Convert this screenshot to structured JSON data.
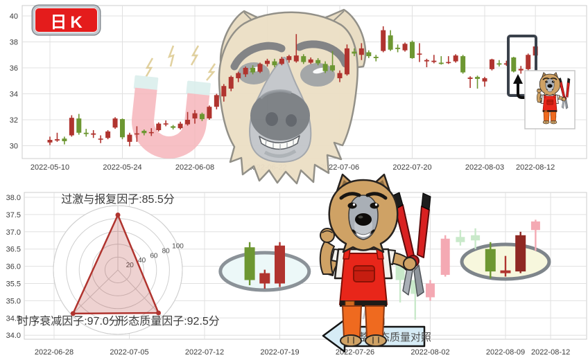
{
  "badge": {
    "label": "日K"
  },
  "banner": {
    "label": "完整形态质量对照"
  },
  "decorations": {
    "magnet": "magnet-icon",
    "dog_head": "dog-head-illustration",
    "mascot": "dog-mechanic-with-pliers-illustration",
    "callout": "highlight-box-with-arrow-and-mascot-card"
  },
  "chart_data": [
    {
      "type": "candlestick",
      "title": "日K",
      "up_color": "#b0342f",
      "down_color": "#6d9732",
      "ylim": [
        29.5,
        40.6
      ],
      "grid": true,
      "y_ticks": [
        "30",
        "32",
        "34",
        "36",
        "38",
        "40"
      ],
      "x_ticks": [
        {
          "idx": 0,
          "label": "2022-05-10"
        },
        {
          "idx": 10,
          "label": "2022-05-24"
        },
        {
          "idx": 20,
          "label": "2022-06-08"
        },
        {
          "idx": 30,
          "label": "2022-06-22"
        },
        {
          "idx": 40,
          "label": "2022-07-06"
        },
        {
          "idx": 50,
          "label": "2022-07-20"
        },
        {
          "idx": 60,
          "label": "2022-08-03"
        },
        {
          "idx": 67,
          "label": "2022-08-12"
        }
      ],
      "dates": [
        "2022-05-10",
        "2022-05-11",
        "2022-05-12",
        "2022-05-13",
        "2022-05-16",
        "2022-05-17",
        "2022-05-18",
        "2022-05-19",
        "2022-05-20",
        "2022-05-23",
        "2022-05-24",
        "2022-05-25",
        "2022-05-26",
        "2022-05-27",
        "2022-05-30",
        "2022-05-31",
        "2022-06-01",
        "2022-06-02",
        "2022-06-06",
        "2022-06-07",
        "2022-06-08",
        "2022-06-09",
        "2022-06-10",
        "2022-06-13",
        "2022-06-14",
        "2022-06-15",
        "2022-06-16",
        "2022-06-17",
        "2022-06-20",
        "2022-06-21",
        "2022-06-22",
        "2022-06-23",
        "2022-06-24",
        "2022-06-27",
        "2022-06-28",
        "2022-06-29",
        "2022-06-30",
        "2022-07-01",
        "2022-07-04",
        "2022-07-05",
        "2022-07-06",
        "2022-07-07",
        "2022-07-08",
        "2022-07-11",
        "2022-07-12",
        "2022-07-13",
        "2022-07-14",
        "2022-07-15",
        "2022-07-18",
        "2022-07-19",
        "2022-07-20",
        "2022-07-21",
        "2022-07-22",
        "2022-07-25",
        "2022-07-26",
        "2022-07-27",
        "2022-07-28",
        "2022-07-29",
        "2022-08-01",
        "2022-08-02",
        "2022-08-03",
        "2022-08-04",
        "2022-08-05",
        "2022-08-08",
        "2022-08-09",
        "2022-08-10",
        "2022-08-11",
        "2022-08-12"
      ],
      "ohlc": [
        [
          30.25,
          30.7,
          30.05,
          30.45
        ],
        [
          30.4,
          31.0,
          30.3,
          30.5
        ],
        [
          30.55,
          30.7,
          30.1,
          30.35
        ],
        [
          30.8,
          32.35,
          30.7,
          32.15
        ],
        [
          32.1,
          32.45,
          30.85,
          31.0
        ],
        [
          31.0,
          31.3,
          30.7,
          30.9
        ],
        [
          30.85,
          31.2,
          30.6,
          30.95
        ],
        [
          30.5,
          30.8,
          30.2,
          30.55
        ],
        [
          30.6,
          31.2,
          30.5,
          31.1
        ],
        [
          31.4,
          32.2,
          31.3,
          32.1
        ],
        [
          32.05,
          32.1,
          30.5,
          30.65
        ],
        [
          30.3,
          31.0,
          29.95,
          30.85
        ],
        [
          30.9,
          31.5,
          30.3,
          30.95
        ],
        [
          31.15,
          31.25,
          30.8,
          30.97
        ],
        [
          31.0,
          31.35,
          30.75,
          31.05
        ],
        [
          31.2,
          31.8,
          31.1,
          31.7
        ],
        [
          31.7,
          31.95,
          31.5,
          31.72
        ],
        [
          31.5,
          31.6,
          31.25,
          31.38
        ],
        [
          31.35,
          31.85,
          31.25,
          31.7
        ],
        [
          31.65,
          32.6,
          31.55,
          32.0
        ],
        [
          32.1,
          32.75,
          31.7,
          32.5
        ],
        [
          32.45,
          32.55,
          31.9,
          32.05
        ],
        [
          32.1,
          33.1,
          32.0,
          33.0
        ],
        [
          33.0,
          34.0,
          32.8,
          33.9
        ],
        [
          33.8,
          34.75,
          33.4,
          34.6
        ],
        [
          34.4,
          35.4,
          34.2,
          35.3
        ],
        [
          35.2,
          35.7,
          34.9,
          35.6
        ],
        [
          35.5,
          36.1,
          35.3,
          36.0
        ],
        [
          36.0,
          36.2,
          35.5,
          35.65
        ],
        [
          35.7,
          36.4,
          35.6,
          36.3
        ],
        [
          36.3,
          36.7,
          36.1,
          36.55
        ],
        [
          36.5,
          36.7,
          36.05,
          36.2
        ],
        [
          36.3,
          36.85,
          36.2,
          36.7
        ],
        [
          36.6,
          37.0,
          36.4,
          36.9
        ],
        [
          36.5,
          38.6,
          36.4,
          36.95
        ],
        [
          36.9,
          37.05,
          36.3,
          36.45
        ],
        [
          36.4,
          36.8,
          36.3,
          36.65
        ],
        [
          36.6,
          36.75,
          36.2,
          36.35
        ],
        [
          36.3,
          36.5,
          35.6,
          35.75
        ],
        [
          36.2,
          37.3,
          35.7,
          35.8
        ],
        [
          35.2,
          35.8,
          34.9,
          35.6
        ],
        [
          35.5,
          37.8,
          35.4,
          37.5
        ],
        [
          37.25,
          37.5,
          36.9,
          37.1
        ],
        [
          37.0,
          37.9,
          36.6,
          37.5
        ],
        [
          37.2,
          37.35,
          36.75,
          36.9
        ],
        [
          36.85,
          37.0,
          36.5,
          36.75
        ],
        [
          37.3,
          39.2,
          37.2,
          38.9
        ],
        [
          38.5,
          38.9,
          37.3,
          37.4
        ],
        [
          37.55,
          37.8,
          37.2,
          37.45
        ],
        [
          37.35,
          37.95,
          37.25,
          37.85
        ],
        [
          38.0,
          38.1,
          36.7,
          36.75
        ],
        [
          37.05,
          37.9,
          36.45,
          37.1
        ],
        [
          36.5,
          36.7,
          36.05,
          36.6
        ],
        [
          36.45,
          37.0,
          36.35,
          36.55
        ],
        [
          36.4,
          36.9,
          36.25,
          36.3
        ],
        [
          36.38,
          36.9,
          36.3,
          36.45
        ],
        [
          36.5,
          37.05,
          36.4,
          36.95
        ],
        [
          36.9,
          37.0,
          35.55,
          35.65
        ],
        [
          35.15,
          35.35,
          34.45,
          35.25
        ],
        [
          35.3,
          35.4,
          34.4,
          35.15
        ],
        [
          34.95,
          35.3,
          34.55,
          35.2
        ],
        [
          35.9,
          36.7,
          35.8,
          36.65
        ],
        [
          36.35,
          36.6,
          36.1,
          36.25
        ],
        [
          36.25,
          36.55,
          36.15,
          36.35
        ],
        [
          36.8,
          36.85,
          35.65,
          35.72
        ],
        [
          35.8,
          36.15,
          35.55,
          35.92
        ],
        [
          35.9,
          37.1,
          35.8,
          37.0
        ],
        [
          36.95,
          38.3,
          36.9,
          37.65
        ]
      ]
    },
    {
      "type": "candlestick",
      "note": "faded pattern-comparison panel with two ellipse-highlighted 3-candle groups and factor radar",
      "ylim": [
        33.8,
        38.2
      ],
      "grid": true,
      "y_ticks": [
        "34.0",
        "34.5",
        "35.0",
        "35.5",
        "36.0",
        "36.5",
        "37.0",
        "37.5",
        "38.0"
      ],
      "x_ticks": [
        {
          "idx": 0,
          "label": "2022-06-28"
        },
        {
          "idx": 5,
          "label": "2022-07-05"
        },
        {
          "idx": 10,
          "label": "2022-07-12"
        },
        {
          "idx": 15,
          "label": "2022-07-19"
        },
        {
          "idx": 20,
          "label": "2022-07-26"
        },
        {
          "idx": 25,
          "label": "2022-08-02"
        },
        {
          "idx": 30,
          "label": "2022-08-09"
        },
        {
          "idx": 33,
          "label": "2022-08-12"
        }
      ],
      "styles": {
        "solid": {
          "up": "#b0342f",
          "down": "#6d9732"
        },
        "solid-dark": {
          "up": "#8f2823",
          "down": "#6d9732"
        },
        "faded": {
          "up": "#f4a9b3",
          "down": "#c9e9ca"
        }
      },
      "candles": [
        {
          "idx": 13,
          "date": "2022-07-15",
          "o": 36.55,
          "h": 36.7,
          "l": 35.45,
          "c": 35.6,
          "style": "solid"
        },
        {
          "idx": 14,
          "date": "2022-07-18",
          "o": 35.5,
          "h": 35.9,
          "l": 35.35,
          "c": 35.8,
          "style": "solid"
        },
        {
          "idx": 15,
          "date": "2022-07-19",
          "o": 35.5,
          "h": 36.7,
          "l": 35.4,
          "c": 36.6,
          "style": "solid"
        },
        {
          "idx": 23,
          "date": "2022-07-29",
          "o": 36.05,
          "h": 36.1,
          "l": 34.95,
          "c": 35.6,
          "style": "faded"
        },
        {
          "idx": 24,
          "date": "2022-08-01",
          "o": 35.6,
          "h": 35.7,
          "l": 34.45,
          "c": 35.2,
          "style": "faded"
        },
        {
          "idx": 25,
          "date": "2022-08-02",
          "o": 35.1,
          "h": 35.6,
          "l": 35.0,
          "c": 35.5,
          "style": "faded"
        },
        {
          "idx": 26,
          "date": "2022-08-03",
          "o": 35.75,
          "h": 36.9,
          "l": 35.7,
          "c": 36.8,
          "style": "faded"
        },
        {
          "idx": 27,
          "date": "2022-08-04",
          "o": 36.85,
          "h": 37.05,
          "l": 36.6,
          "c": 36.7,
          "style": "faded"
        },
        {
          "idx": 28,
          "date": "2022-08-05",
          "o": 36.9,
          "h": 37.1,
          "l": 36.5,
          "c": 36.75,
          "style": "faded"
        },
        {
          "idx": 29,
          "date": "2022-08-08",
          "o": 36.5,
          "h": 36.7,
          "l": 35.65,
          "c": 35.85,
          "style": "solid"
        },
        {
          "idx": 30,
          "date": "2022-08-09",
          "o": 35.8,
          "h": 36.3,
          "l": 35.7,
          "c": 35.88,
          "style": "solid"
        },
        {
          "idx": 31,
          "date": "2022-08-10",
          "o": 35.85,
          "h": 37.0,
          "l": 35.8,
          "c": 36.9,
          "style": "solid-dark"
        },
        {
          "idx": 32,
          "date": "2022-08-11",
          "o": 37.05,
          "h": 37.35,
          "l": 36.45,
          "c": 37.3,
          "style": "faded"
        }
      ],
      "highlights": [
        {
          "name": "left",
          "cx_idx": 14,
          "cy": 392,
          "rx": 64,
          "ry": 27,
          "fill": "#ecf8f8",
          "stroke": "#8b9298"
        },
        {
          "name": "right",
          "cx_idx": 30,
          "cy": 378,
          "rx": 63,
          "ry": 25,
          "fill": "#f7f7dd",
          "stroke": "#7e858b"
        }
      ],
      "radar": {
        "max": 100,
        "ticks": [
          "20",
          "40",
          "60",
          "80",
          "100"
        ],
        "color": "#b0342f",
        "factors": [
          {
            "label": "过激与报复因子:85.5分",
            "value": 85.5,
            "position": "top"
          },
          {
            "label": "时序衰减因子:97.0分",
            "value": 97.0,
            "position": "bottom-left"
          },
          {
            "label": "形态质量因子:92.5分",
            "value": 92.5,
            "position": "bottom-right"
          }
        ]
      }
    }
  ]
}
